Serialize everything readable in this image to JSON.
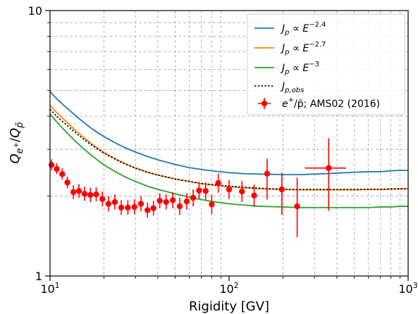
{
  "chart_data": {
    "type": "line",
    "xlabel": "Rigidity [GV]",
    "ylabel": "Q_{e+}/Q_{p̄}",
    "xscale": "log",
    "yscale": "log",
    "xlim": [
      10,
      1000
    ],
    "ylim": [
      1,
      10
    ],
    "grid": true,
    "legend_position": "top-right",
    "x_ticks": [
      {
        "value": 10,
        "base": "10",
        "exp": "1"
      },
      {
        "value": 100,
        "base": "10",
        "exp": "2"
      },
      {
        "value": 1000,
        "base": "10",
        "exp": "3"
      }
    ],
    "y_ticks": [
      {
        "value": 1,
        "label": "1"
      },
      {
        "value": 10,
        "label": "10"
      }
    ],
    "series": [
      {
        "name": "J_p ∝ E^{-2.4}",
        "legend": {
          "main": "J",
          "sub": "p",
          "mid": " ∝ E",
          "sup": "−2.4"
        },
        "color": "#1f77b4",
        "style": "solid",
        "x": [
          10,
          11,
          12,
          13,
          14,
          15,
          17,
          20,
          23,
          26,
          30,
          35,
          40,
          50,
          60,
          70,
          80,
          100,
          120,
          150,
          200,
          250,
          300,
          350,
          400,
          500,
          600,
          700,
          800,
          900,
          1000
        ],
        "y": [
          4.95,
          4.62,
          4.38,
          4.18,
          4.0,
          3.85,
          3.6,
          3.35,
          3.18,
          3.05,
          2.93,
          2.82,
          2.74,
          2.63,
          2.56,
          2.52,
          2.49,
          2.45,
          2.43,
          2.42,
          2.41,
          2.41,
          2.42,
          2.43,
          2.44,
          2.46,
          2.47,
          2.47,
          2.49,
          2.5,
          2.5
        ]
      },
      {
        "name": "J_p ∝ E^{-2.7}",
        "legend": {
          "main": "J",
          "sub": "p",
          "mid": " ∝ E",
          "sup": "−2.7"
        },
        "color": "#ff7f0e",
        "style": "solid",
        "x": [
          10,
          11,
          12,
          13,
          14,
          15,
          17,
          20,
          23,
          26,
          30,
          35,
          40,
          50,
          60,
          70,
          80,
          100,
          120,
          150,
          200,
          250,
          300,
          350,
          400,
          500,
          600,
          700,
          800,
          900,
          1000
        ],
        "y": [
          4.4,
          4.1,
          3.88,
          3.68,
          3.52,
          3.38,
          3.15,
          2.92,
          2.77,
          2.66,
          2.55,
          2.46,
          2.4,
          2.32,
          2.27,
          2.23,
          2.2,
          2.17,
          2.15,
          2.13,
          2.12,
          2.11,
          2.11,
          2.11,
          2.11,
          2.11,
          2.12,
          2.12,
          2.12,
          2.13,
          2.13
        ]
      },
      {
        "name": "J_p ∝ E^{-3}",
        "legend": {
          "main": "J",
          "sub": "p",
          "mid": " ∝ E",
          "sup": "−3"
        },
        "color": "#2ca02c",
        "style": "solid",
        "x": [
          10,
          11,
          12,
          13,
          14,
          15,
          17,
          20,
          23,
          26,
          30,
          35,
          40,
          50,
          60,
          70,
          80,
          100,
          120,
          150,
          200,
          250,
          300,
          350,
          400,
          500,
          600,
          700,
          800,
          900,
          1000
        ],
        "y": [
          4.08,
          3.78,
          3.55,
          3.36,
          3.2,
          3.06,
          2.85,
          2.62,
          2.48,
          2.37,
          2.27,
          2.18,
          2.12,
          2.04,
          1.98,
          1.94,
          1.91,
          1.87,
          1.85,
          1.83,
          1.82,
          1.81,
          1.81,
          1.81,
          1.81,
          1.81,
          1.81,
          1.82,
          1.82,
          1.83,
          1.83
        ]
      },
      {
        "name": "J_{p,obs}",
        "legend": {
          "main": "J",
          "sub": "p,obs",
          "mid": "",
          "sup": ""
        },
        "color": "#000000",
        "style": "dotted",
        "x": [
          10,
          11,
          12,
          13,
          14,
          15,
          17,
          20,
          23,
          26,
          30,
          35,
          40,
          50,
          60,
          70,
          80,
          100,
          120,
          150,
          200,
          250,
          300,
          350,
          400,
          500,
          600,
          700,
          800,
          900,
          1000
        ],
        "y": [
          4.25,
          3.97,
          3.77,
          3.6,
          3.45,
          3.32,
          3.12,
          2.9,
          2.76,
          2.65,
          2.55,
          2.46,
          2.4,
          2.32,
          2.27,
          2.23,
          2.21,
          2.18,
          2.16,
          2.14,
          2.12,
          2.12,
          2.12,
          2.12,
          2.12,
          2.12,
          2.12,
          2.12,
          2.13,
          2.13,
          2.13
        ]
      }
    ],
    "data_series": {
      "name": "e+/p̄; AMS02 (2016)",
      "legend": {
        "pre": "e",
        "sup": "+",
        "mid": "/p̄; AMS02 (2016)"
      },
      "color": "#ff0000",
      "points": [
        {
          "x": 10.2,
          "y": 2.62,
          "ylo": 2.5,
          "yhi": 2.75,
          "xlo": 10.2,
          "xhi": 10.2
        },
        {
          "x": 10.9,
          "y": 2.53,
          "ylo": 2.42,
          "yhi": 2.66,
          "xlo": 10.9,
          "xhi": 10.9
        },
        {
          "x": 11.7,
          "y": 2.42,
          "ylo": 2.31,
          "yhi": 2.54,
          "xlo": 11.7,
          "xhi": 11.7
        },
        {
          "x": 12.5,
          "y": 2.25,
          "ylo": 2.14,
          "yhi": 2.37,
          "xlo": 12.5,
          "xhi": 12.5
        },
        {
          "x": 13.5,
          "y": 2.07,
          "ylo": 1.95,
          "yhi": 2.2,
          "xlo": 13.5,
          "xhi": 13.5
        },
        {
          "x": 14.5,
          "y": 2.09,
          "ylo": 1.97,
          "yhi": 2.22,
          "xlo": 14.5,
          "xhi": 14.5
        },
        {
          "x": 15.6,
          "y": 2.04,
          "ylo": 1.92,
          "yhi": 2.17,
          "xlo": 15.6,
          "xhi": 15.6
        },
        {
          "x": 16.8,
          "y": 2.02,
          "ylo": 1.9,
          "yhi": 2.15,
          "xlo": 16.8,
          "xhi": 16.8
        },
        {
          "x": 18.1,
          "y": 2.03,
          "ylo": 1.91,
          "yhi": 2.16,
          "xlo": 18.1,
          "xhi": 18.1
        },
        {
          "x": 19.6,
          "y": 1.95,
          "ylo": 1.83,
          "yhi": 2.08,
          "xlo": 19.6,
          "xhi": 19.6
        },
        {
          "x": 21.2,
          "y": 1.87,
          "ylo": 1.75,
          "yhi": 2.0,
          "xlo": 21.2,
          "xhi": 21.2
        },
        {
          "x": 23.0,
          "y": 1.9,
          "ylo": 1.78,
          "yhi": 2.03,
          "xlo": 23.0,
          "xhi": 23.0
        },
        {
          "x": 25.0,
          "y": 1.81,
          "ylo": 1.7,
          "yhi": 1.93,
          "xlo": 25.0,
          "xhi": 25.0
        },
        {
          "x": 27.2,
          "y": 1.81,
          "ylo": 1.7,
          "yhi": 1.93,
          "xlo": 27.2,
          "xhi": 27.2
        },
        {
          "x": 29.6,
          "y": 1.82,
          "ylo": 1.71,
          "yhi": 1.94,
          "xlo": 29.6,
          "xhi": 29.6
        },
        {
          "x": 32.2,
          "y": 1.87,
          "ylo": 1.75,
          "yhi": 2.0,
          "xlo": 32.2,
          "xhi": 32.2
        },
        {
          "x": 35.0,
          "y": 1.77,
          "ylo": 1.66,
          "yhi": 1.89,
          "xlo": 35.0,
          "xhi": 35.0
        },
        {
          "x": 37.8,
          "y": 1.8,
          "ylo": 1.69,
          "yhi": 1.92,
          "xlo": 37.8,
          "xhi": 37.8
        },
        {
          "x": 41.0,
          "y": 1.92,
          "ylo": 1.8,
          "yhi": 2.05,
          "xlo": 41.0,
          "xhi": 41.0
        },
        {
          "x": 44.5,
          "y": 1.9,
          "ylo": 1.78,
          "yhi": 2.03,
          "xlo": 44.5,
          "xhi": 44.5
        },
        {
          "x": 48.5,
          "y": 1.93,
          "ylo": 1.8,
          "yhi": 2.07,
          "xlo": 48.5,
          "xhi": 48.5
        },
        {
          "x": 53.0,
          "y": 1.83,
          "ylo": 1.7,
          "yhi": 1.97,
          "xlo": 53.0,
          "xhi": 53.0
        },
        {
          "x": 58.0,
          "y": 1.91,
          "ylo": 1.78,
          "yhi": 2.05,
          "xlo": 58.0,
          "xhi": 58.0
        },
        {
          "x": 63.0,
          "y": 1.97,
          "ylo": 1.83,
          "yhi": 2.12,
          "xlo": 63.0,
          "xhi": 63.0
        },
        {
          "x": 68.0,
          "y": 2.1,
          "ylo": 1.95,
          "yhi": 2.26,
          "xlo": 68.0,
          "xhi": 68.0
        },
        {
          "x": 74.0,
          "y": 2.09,
          "ylo": 1.94,
          "yhi": 2.25,
          "xlo": 74.0,
          "xhi": 74.0
        },
        {
          "x": 80.0,
          "y": 1.86,
          "ylo": 1.71,
          "yhi": 2.02,
          "xlo": 80.0,
          "xhi": 80.0
        },
        {
          "x": 87.0,
          "y": 2.24,
          "ylo": 2.06,
          "yhi": 2.43,
          "xlo": 87.0,
          "xhi": 87.0
        },
        {
          "x": 100.0,
          "y": 2.12,
          "ylo": 1.95,
          "yhi": 2.3,
          "xlo": 100.0,
          "xhi": 100.0
        },
        {
          "x": 118.0,
          "y": 2.08,
          "ylo": 1.9,
          "yhi": 2.28,
          "xlo": 118.0,
          "xhi": 118.0
        },
        {
          "x": 138.0,
          "y": 2.01,
          "ylo": 1.82,
          "yhi": 2.21,
          "xlo": 138.0,
          "xhi": 138.0
        },
        {
          "x": 163.0,
          "y": 2.43,
          "ylo": 1.94,
          "yhi": 2.77,
          "xlo": 163.0,
          "xhi": 163.0
        },
        {
          "x": 197.0,
          "y": 2.12,
          "ylo": 1.7,
          "yhi": 2.45,
          "xlo": 197.0,
          "xhi": 197.0
        },
        {
          "x": 240.0,
          "y": 1.83,
          "ylo": 1.4,
          "yhi": 2.35,
          "xlo": 240.0,
          "xhi": 240.0
        },
        {
          "x": 360.0,
          "y": 2.55,
          "ylo": 1.76,
          "yhi": 3.3,
          "xlo": 265.0,
          "xhi": 450.0
        }
      ]
    }
  }
}
